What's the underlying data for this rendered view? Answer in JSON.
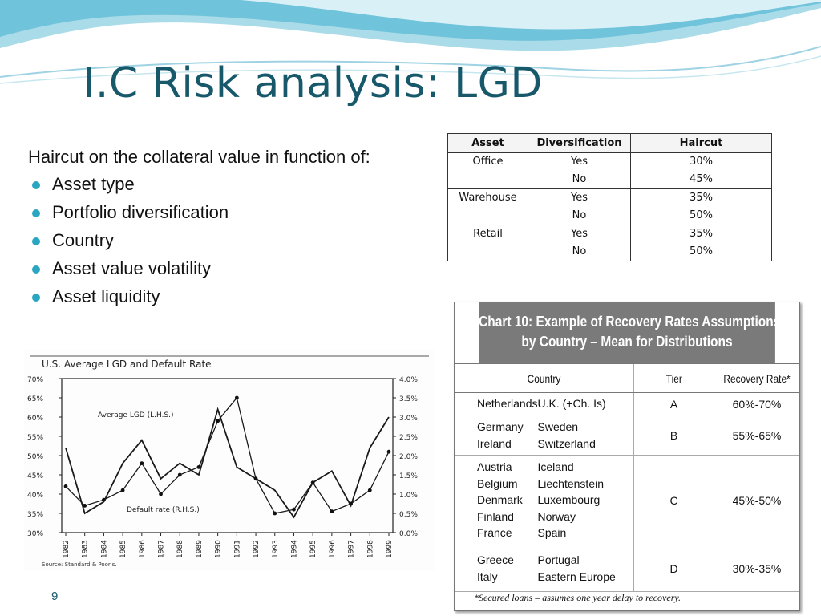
{
  "slide": {
    "title": "I.C Risk analysis: LGD",
    "page_number": "9",
    "accent_color": "#17596b",
    "bullet_color": "#2aa6c2"
  },
  "content": {
    "intro": "Haircut on the collateral value in function of:",
    "bullets": [
      "Asset type",
      "Portfolio diversification",
      "Country",
      "Asset value volatility",
      "Asset liquidity"
    ]
  },
  "haircut_table": {
    "headers": [
      "Asset",
      "Diversification",
      "Haircut"
    ],
    "groups": [
      {
        "asset": "Office",
        "rows": [
          [
            "Yes",
            "30%"
          ],
          [
            "No",
            "45%"
          ]
        ]
      },
      {
        "asset": "Warehouse",
        "rows": [
          [
            "Yes",
            "35%"
          ],
          [
            "No",
            "50%"
          ]
        ]
      },
      {
        "asset": "Retail",
        "rows": [
          [
            "Yes",
            "35%"
          ],
          [
            "No",
            "50%"
          ]
        ]
      }
    ]
  },
  "chart_data": {
    "type": "line",
    "title": "U.S. Average LGD and Default Rate",
    "source": "Source: Standard & Poor's.",
    "x": [
      "1982",
      "1983",
      "1984",
      "1985",
      "1986",
      "1987",
      "1988",
      "1989",
      "1990",
      "1991",
      "1992",
      "1993",
      "1994",
      "1995",
      "1996",
      "1997",
      "1998",
      "1999"
    ],
    "left_axis": {
      "ticks": [
        "70%",
        "65%",
        "60%",
        "55%",
        "50%",
        "45%",
        "40%",
        "35%",
        "30%"
      ],
      "ylim": [
        30,
        70
      ]
    },
    "right_axis": {
      "ticks": [
        "4.0%",
        "3.5%",
        "3.0%",
        "2.5%",
        "2.0%",
        "1.5%",
        "1.0%",
        "0.5%",
        "0.0%"
      ],
      "ylim": [
        0,
        4
      ]
    },
    "series": [
      {
        "name": "Average LGD (L.H.S.)",
        "axis": "left",
        "values": [
          52,
          35,
          38,
          48,
          54,
          44,
          48,
          45,
          62,
          47,
          44,
          41,
          34,
          43,
          46,
          37,
          52,
          60
        ]
      },
      {
        "name": "Default rate (R.H.S.)",
        "axis": "right",
        "values": [
          1.2,
          0.7,
          0.85,
          1.1,
          1.8,
          1.0,
          1.5,
          1.7,
          2.9,
          3.5,
          1.4,
          0.5,
          0.6,
          1.3,
          0.55,
          0.75,
          1.1,
          2.1
        ]
      }
    ]
  },
  "recovery_chart": {
    "title_line1": "Chart 10: Example of Recovery Rates Assumptions",
    "title_line2": "by Country – Mean for Distributions",
    "headers": {
      "country": "Country",
      "tier": "Tier",
      "rate": "Recovery Rate*"
    },
    "rows": [
      {
        "col1": [
          "Netherlands"
        ],
        "col2": [
          "U.K. (+Ch. Is)"
        ],
        "tier": "A",
        "rate": "60%-70%"
      },
      {
        "col1": [
          "Germany",
          "Ireland"
        ],
        "col2": [
          "Sweden",
          "Switzerland"
        ],
        "tier": "B",
        "rate": "55%-65%"
      },
      {
        "col1": [
          "Austria",
          "Belgium",
          "Denmark",
          "Finland",
          "France"
        ],
        "col2": [
          "Iceland",
          "Liechtenstein",
          "Luxembourg",
          "Norway",
          "Spain"
        ],
        "tier": "C",
        "rate": "45%-50%"
      },
      {
        "col1": [
          "Greece",
          "Italy"
        ],
        "col2": [
          "Portugal",
          "Eastern Europe"
        ],
        "tier": "D",
        "rate": "30%-35%"
      }
    ],
    "note": "*Secured loans – assumes one year delay to recovery."
  }
}
